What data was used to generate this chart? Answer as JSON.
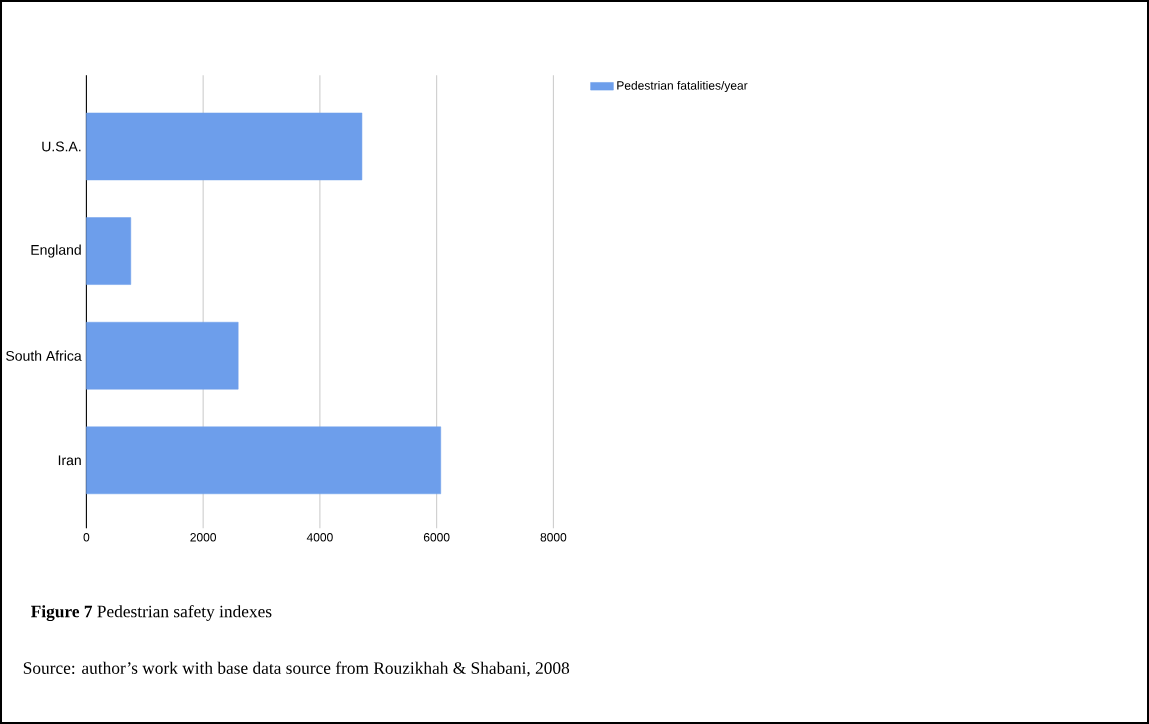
{
  "chart_data": {
    "type": "bar",
    "orientation": "horizontal",
    "title": "**Figure 7**  Pedestrian safety indexes",
    "annotations": [
      "Source: author’s work with base data source from Rouzikhah &  Shabani, 2008"
    ],
    "categories": [
      "U.S.A.",
      "England",
      "South Africa",
      "Iran"
    ],
    "series": [
      {
        "name": "Pedestrian fatalities/year",
        "color": "#6d9eeb",
        "values": [
          4720,
          760,
          2600,
          6070
        ]
      }
    ],
    "xlim": [
      0,
      8000
    ],
    "xticks": [
      0,
      2000,
      4000,
      6000,
      8000
    ],
    "grid": "x",
    "legend": "top right"
  }
}
